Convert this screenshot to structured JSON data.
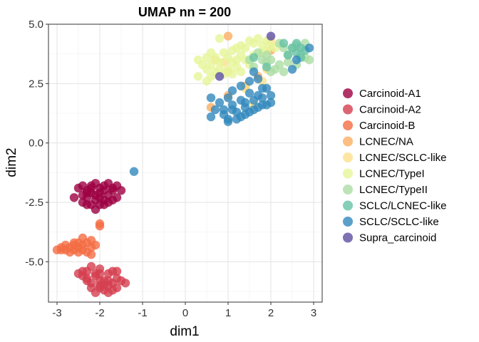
{
  "chart_data": {
    "type": "scatter",
    "title": "UMAP nn = 200",
    "xlabel": "dim1",
    "ylabel": "dim2",
    "xlim": [
      -3.2,
      3.2
    ],
    "ylim": [
      -6.7,
      5.0
    ],
    "xticks": [
      -3,
      -2,
      -1,
      0,
      1,
      2,
      3
    ],
    "yticks": [
      -5.0,
      -2.5,
      0.0,
      2.5,
      5.0
    ],
    "xtick_labels": [
      "-3",
      "-2",
      "-1",
      "0",
      "1",
      "2",
      "3"
    ],
    "ytick_labels": [
      "-5.0",
      "-2.5",
      "0.0",
      "2.5",
      "5.0"
    ],
    "grid": true,
    "legend_position": "right",
    "series": [
      {
        "name": "Carcinoid-A1",
        "color": "#9E0142",
        "points": [
          [
            -2.4,
            -2.2
          ],
          [
            -2.3,
            -2.0
          ],
          [
            -2.2,
            -1.8
          ],
          [
            -2.1,
            -2.4
          ],
          [
            -2.0,
            -2.1
          ],
          [
            -1.9,
            -1.8
          ],
          [
            -1.8,
            -2.2
          ],
          [
            -1.7,
            -1.9
          ],
          [
            -2.6,
            -2.3
          ],
          [
            -2.5,
            -1.9
          ],
          [
            -2.0,
            -2.6
          ],
          [
            -1.9,
            -2.4
          ],
          [
            -2.2,
            -2.6
          ],
          [
            -2.4,
            -2.5
          ],
          [
            -1.6,
            -1.8
          ],
          [
            -1.7,
            -2.4
          ],
          [
            -2.1,
            -1.7
          ],
          [
            -2.3,
            -2.3
          ],
          [
            -1.8,
            -1.7
          ],
          [
            -2.0,
            -1.9
          ],
          [
            -1.9,
            -2.0
          ],
          [
            -2.2,
            -2.1
          ],
          [
            -2.1,
            -2.2
          ],
          [
            -2.0,
            -2.3
          ],
          [
            -2.3,
            -2.6
          ],
          [
            -1.6,
            -2.3
          ],
          [
            -1.5,
            -2.0
          ],
          [
            -2.2,
            -1.9
          ],
          [
            -2.4,
            -1.8
          ],
          [
            -1.8,
            -2.5
          ],
          [
            -2.3,
            -2.1
          ],
          [
            -1.9,
            -2.6
          ],
          [
            -2.1,
            -2.8
          ],
          [
            -1.7,
            -2.0
          ]
        ]
      },
      {
        "name": "Carcinoid-A2",
        "color": "#D53E4F",
        "points": [
          [
            -2.3,
            -5.4
          ],
          [
            -2.1,
            -5.6
          ],
          [
            -2.0,
            -5.3
          ],
          [
            -1.9,
            -5.8
          ],
          [
            -1.8,
            -6.0
          ],
          [
            -2.2,
            -5.9
          ],
          [
            -2.0,
            -6.1
          ],
          [
            -1.7,
            -6.2
          ],
          [
            -1.6,
            -5.7
          ],
          [
            -2.4,
            -5.6
          ],
          [
            -2.1,
            -6.3
          ],
          [
            -1.8,
            -5.5
          ],
          [
            -2.3,
            -5.8
          ],
          [
            -1.9,
            -6.2
          ],
          [
            -1.7,
            -5.4
          ],
          [
            -2.5,
            -5.5
          ],
          [
            -2.0,
            -5.8
          ],
          [
            -1.8,
            -6.3
          ],
          [
            -1.5,
            -5.8
          ],
          [
            -2.2,
            -5.2
          ],
          [
            -1.6,
            -6.1
          ],
          [
            -2.1,
            -5.5
          ],
          [
            -1.9,
            -6.0
          ],
          [
            -2.3,
            -5.7
          ],
          [
            -1.7,
            -5.9
          ],
          [
            -2.0,
            -5.5
          ],
          [
            -1.6,
            -5.4
          ],
          [
            -1.4,
            -5.9
          ],
          [
            -2.2,
            -6.1
          ],
          [
            -1.8,
            -5.8
          ],
          [
            -2.0,
            -6.0
          ],
          [
            -2.4,
            -5.4
          ]
        ]
      },
      {
        "name": "Carcinoid-B",
        "color": "#F46D43",
        "points": [
          [
            -3.0,
            -4.5
          ],
          [
            -2.9,
            -4.4
          ],
          [
            -2.8,
            -4.3
          ],
          [
            -2.7,
            -4.4
          ],
          [
            -2.6,
            -4.3
          ],
          [
            -2.5,
            -4.2
          ],
          [
            -2.4,
            -4.3
          ],
          [
            -2.3,
            -4.2
          ],
          [
            -2.2,
            -4.1
          ],
          [
            -2.6,
            -4.5
          ],
          [
            -2.5,
            -4.6
          ],
          [
            -2.4,
            -4.5
          ],
          [
            -2.3,
            -4.6
          ],
          [
            -2.2,
            -4.4
          ],
          [
            -2.7,
            -4.6
          ],
          [
            -2.9,
            -4.5
          ],
          [
            -2.8,
            -4.5
          ],
          [
            -2.6,
            -4.2
          ],
          [
            -2.1,
            -4.3
          ],
          [
            -2.4,
            -4.0
          ],
          [
            -2.0,
            -3.5
          ],
          [
            -2.0,
            -3.4
          ],
          [
            -2.5,
            -4.4
          ],
          [
            -2.2,
            -4.7
          ]
        ]
      },
      {
        "name": "LCNEC/NA",
        "color": "#FDAE61",
        "points": [
          [
            1.0,
            4.5
          ],
          [
            2.0,
            3.9
          ],
          [
            1.7,
            2.8
          ],
          [
            0.6,
            1.5
          ],
          [
            1.4,
            2.4
          ],
          [
            1.0,
            2.0
          ]
        ]
      },
      {
        "name": "LCNEC/SCLC-like",
        "color": "#FEE08B",
        "points": [
          [
            0.7,
            3.5
          ],
          [
            1.0,
            3.0
          ],
          [
            2.0,
            4.3
          ],
          [
            1.9,
            3.1
          ],
          [
            1.4,
            2.3
          ],
          [
            1.6,
            1.6
          ],
          [
            0.9,
            3.4
          ],
          [
            1.8,
            2.6
          ]
        ]
      },
      {
        "name": "LCNEC/TypeI",
        "color": "#E6F598",
        "points": [
          [
            0.3,
            3.5
          ],
          [
            0.5,
            3.6
          ],
          [
            0.6,
            3.8
          ],
          [
            0.7,
            3.6
          ],
          [
            0.8,
            3.4
          ],
          [
            0.9,
            3.8
          ],
          [
            1.0,
            3.6
          ],
          [
            1.1,
            3.9
          ],
          [
            1.2,
            4.0
          ],
          [
            1.3,
            3.7
          ],
          [
            1.4,
            3.5
          ],
          [
            1.5,
            3.3
          ],
          [
            1.6,
            4.2
          ],
          [
            1.7,
            4.4
          ],
          [
            1.8,
            4.1
          ],
          [
            1.9,
            4.3
          ],
          [
            2.1,
            4.0
          ],
          [
            0.5,
            3.1
          ],
          [
            0.6,
            2.8
          ],
          [
            0.7,
            3.0
          ],
          [
            0.8,
            3.1
          ],
          [
            0.9,
            2.9
          ],
          [
            1.0,
            3.1
          ],
          [
            1.1,
            2.9
          ],
          [
            1.2,
            3.2
          ],
          [
            1.3,
            3.0
          ],
          [
            0.3,
            2.8
          ],
          [
            0.4,
            3.3
          ],
          [
            1.8,
            3.8
          ],
          [
            2.0,
            4.1
          ],
          [
            1.5,
            4.3
          ],
          [
            1.3,
            4.1
          ],
          [
            0.8,
            4.4
          ],
          [
            1.6,
            3.7
          ],
          [
            0.6,
            3.3
          ],
          [
            1.1,
            3.4
          ],
          [
            1.4,
            4.0
          ],
          [
            0.5,
            2.6
          ],
          [
            1.9,
            3.9
          ],
          [
            1.2,
            3.5
          ]
        ]
      },
      {
        "name": "LCNEC/TypeII",
        "color": "#ABDDA4",
        "points": [
          [
            1.5,
            3.5
          ],
          [
            1.6,
            3.2
          ],
          [
            1.8,
            3.5
          ],
          [
            1.9,
            3.4
          ],
          [
            2.0,
            3.5
          ],
          [
            2.1,
            3.1
          ],
          [
            2.2,
            3.3
          ],
          [
            2.3,
            3.0
          ],
          [
            2.4,
            3.4
          ],
          [
            2.5,
            4.0
          ],
          [
            2.6,
            4.1
          ],
          [
            2.7,
            3.7
          ],
          [
            2.8,
            4.2
          ],
          [
            2.9,
            3.5
          ],
          [
            2.4,
            3.7
          ],
          [
            2.2,
            4.2
          ],
          [
            1.7,
            3.8
          ],
          [
            2.0,
            3.0
          ],
          [
            2.6,
            3.3
          ],
          [
            2.3,
            4.0
          ],
          [
            2.8,
            3.6
          ],
          [
            1.9,
            3.7
          ]
        ]
      },
      {
        "name": "SCLC/LCNEC-like",
        "color": "#66C2A5",
        "points": [
          [
            2.3,
            4.2
          ],
          [
            2.5,
            4.0
          ],
          [
            2.6,
            3.8
          ],
          [
            2.7,
            3.6
          ],
          [
            2.8,
            3.9
          ],
          [
            2.6,
            4.2
          ],
          [
            1.6,
            3.6
          ],
          [
            1.9,
            3.2
          ],
          [
            2.4,
            3.7
          ],
          [
            2.7,
            4.0
          ]
        ]
      },
      {
        "name": "SCLC/SCLC-like",
        "color": "#3288BD",
        "points": [
          [
            0.6,
            1.9
          ],
          [
            0.8,
            1.7
          ],
          [
            0.9,
            1.4
          ],
          [
            1.0,
            1.9
          ],
          [
            1.1,
            1.6
          ],
          [
            1.2,
            1.3
          ],
          [
            1.3,
            1.8
          ],
          [
            1.4,
            1.5
          ],
          [
            1.5,
            2.1
          ],
          [
            1.6,
            1.8
          ],
          [
            1.7,
            1.5
          ],
          [
            1.8,
            1.9
          ],
          [
            1.9,
            1.6
          ],
          [
            2.0,
            2.0
          ],
          [
            1.8,
            2.3
          ],
          [
            1.5,
            2.6
          ],
          [
            1.3,
            2.4
          ],
          [
            1.1,
            2.2
          ],
          [
            0.9,
            1.2
          ],
          [
            1.0,
            1.0
          ],
          [
            1.2,
            1.0
          ],
          [
            1.4,
            1.2
          ],
          [
            1.6,
            1.4
          ],
          [
            0.7,
            1.4
          ],
          [
            0.6,
            1.1
          ],
          [
            1.9,
            2.3
          ],
          [
            1.7,
            2.0
          ],
          [
            1.1,
            1.4
          ],
          [
            1.3,
            1.1
          ],
          [
            1.5,
            1.3
          ],
          [
            2.6,
            3.5
          ],
          [
            2.5,
            3.1
          ],
          [
            2.9,
            4.0
          ],
          [
            1.6,
            3.0
          ],
          [
            1.7,
            2.7
          ],
          [
            -1.2,
            -1.2
          ],
          [
            1.0,
            0.9
          ],
          [
            1.8,
            1.6
          ],
          [
            2.0,
            1.7
          ],
          [
            1.4,
            1.7
          ]
        ]
      },
      {
        "name": "Supra_carcinoid",
        "color": "#5E4FA2",
        "points": [
          [
            2.0,
            4.5
          ],
          [
            0.8,
            2.8
          ]
        ]
      }
    ]
  }
}
